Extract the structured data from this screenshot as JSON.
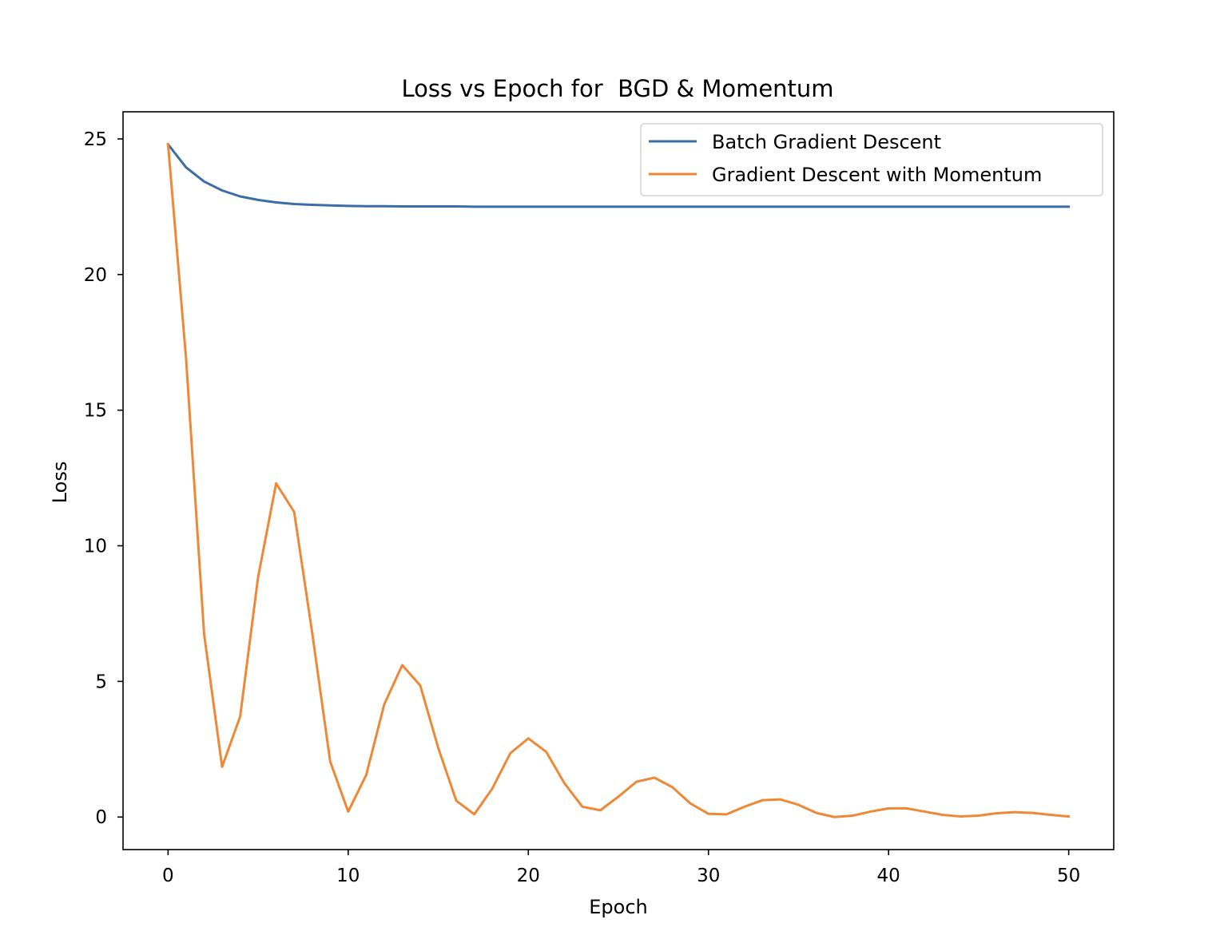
{
  "chart_data": {
    "type": "line",
    "title": "Loss vs Epoch for  BGD & Momentum",
    "xlabel": "Epoch",
    "ylabel": "Loss",
    "xlim": [
      -2.5,
      52.5
    ],
    "ylim": [
      -1.2,
      26.0
    ],
    "xticks": [
      0,
      10,
      20,
      30,
      40,
      50
    ],
    "yticks": [
      0,
      5,
      10,
      15,
      20,
      25
    ],
    "xtick_labels": [
      "0",
      "10",
      "20",
      "30",
      "40",
      "50"
    ],
    "ytick_labels": [
      "0",
      "5",
      "10",
      "15",
      "20",
      "25"
    ],
    "grid": false,
    "legend_position": "upper right",
    "x": [
      0,
      1,
      2,
      3,
      4,
      5,
      6,
      7,
      8,
      9,
      10,
      11,
      12,
      13,
      14,
      15,
      16,
      17,
      18,
      19,
      20,
      21,
      22,
      23,
      24,
      25,
      26,
      27,
      28,
      29,
      30,
      31,
      32,
      33,
      34,
      35,
      36,
      37,
      38,
      39,
      40,
      41,
      42,
      43,
      44,
      45,
      46,
      47,
      48,
      49,
      50
    ],
    "series": [
      {
        "name": "Batch Gradient Descent",
        "color": "#3a6ea5",
        "values": [
          24.8,
          23.95,
          23.43,
          23.1,
          22.88,
          22.75,
          22.66,
          22.6,
          22.57,
          22.55,
          22.53,
          22.52,
          22.52,
          22.51,
          22.51,
          22.51,
          22.51,
          22.5,
          22.5,
          22.5,
          22.5,
          22.5,
          22.5,
          22.5,
          22.5,
          22.5,
          22.5,
          22.5,
          22.5,
          22.5,
          22.5,
          22.5,
          22.5,
          22.5,
          22.5,
          22.5,
          22.5,
          22.5,
          22.5,
          22.5,
          22.5,
          22.5,
          22.5,
          22.5,
          22.5,
          22.5,
          22.5,
          22.5,
          22.5,
          22.5,
          22.5
        ]
      },
      {
        "name": "Gradient Descent with Momentum",
        "color": "#ed8936",
        "values": [
          24.8,
          16.9,
          6.75,
          1.85,
          3.7,
          8.85,
          12.3,
          11.25,
          6.8,
          2.05,
          0.2,
          1.55,
          4.15,
          5.6,
          4.85,
          2.55,
          0.6,
          0.1,
          1.05,
          2.35,
          2.9,
          2.4,
          1.25,
          0.38,
          0.25,
          0.75,
          1.3,
          1.45,
          1.1,
          0.5,
          0.12,
          0.1,
          0.38,
          0.62,
          0.65,
          0.45,
          0.15,
          0.0,
          0.05,
          0.2,
          0.32,
          0.32,
          0.2,
          0.08,
          0.02,
          0.05,
          0.14,
          0.18,
          0.15,
          0.08,
          0.02
        ]
      }
    ]
  }
}
